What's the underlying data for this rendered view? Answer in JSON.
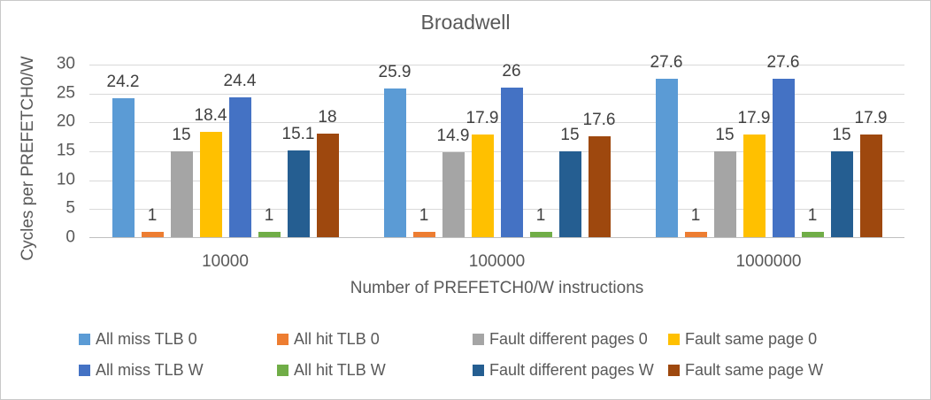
{
  "chart_data": {
    "type": "bar",
    "title": "Broadwell",
    "xlabel": "Number of PREFETCH0/W instructions",
    "ylabel": "Cycles per PREFETCH0/W",
    "ylim": [
      0,
      30
    ],
    "yticks": [
      0,
      5,
      10,
      15,
      20,
      25,
      30
    ],
    "grid": true,
    "legend_position": "bottom",
    "categories": [
      "10000",
      "100000",
      "1000000"
    ],
    "series": [
      {
        "name": "All miss TLB 0",
        "color": "#5B9BD5",
        "values": [
          24.2,
          25.9,
          27.6
        ]
      },
      {
        "name": "All hit TLB 0",
        "color": "#ED7D31",
        "values": [
          1,
          1,
          1
        ]
      },
      {
        "name": "Fault different pages 0",
        "color": "#A5A5A5",
        "values": [
          15,
          14.9,
          15
        ]
      },
      {
        "name": "Fault same page 0",
        "color": "#FFC000",
        "values": [
          18.4,
          17.9,
          17.9
        ]
      },
      {
        "name": "All miss TLB W",
        "color": "#4472C4",
        "values": [
          24.4,
          26,
          27.6
        ]
      },
      {
        "name": "All hit TLB W",
        "color": "#70AD47",
        "values": [
          1,
          1,
          1
        ]
      },
      {
        "name": "Fault different pages W",
        "color": "#255E91",
        "values": [
          15.1,
          15,
          15
        ]
      },
      {
        "name": "Fault same page W",
        "color": "#9E480E",
        "values": [
          18,
          17.6,
          17.9
        ]
      }
    ],
    "colors": {
      "axis_text": "#595959",
      "data_label": "#404040",
      "gridline": "#D9D9D9",
      "axis_line": "#BFBFBF",
      "border": "#C9C9C9",
      "background": "#FFFFFF"
    }
  }
}
